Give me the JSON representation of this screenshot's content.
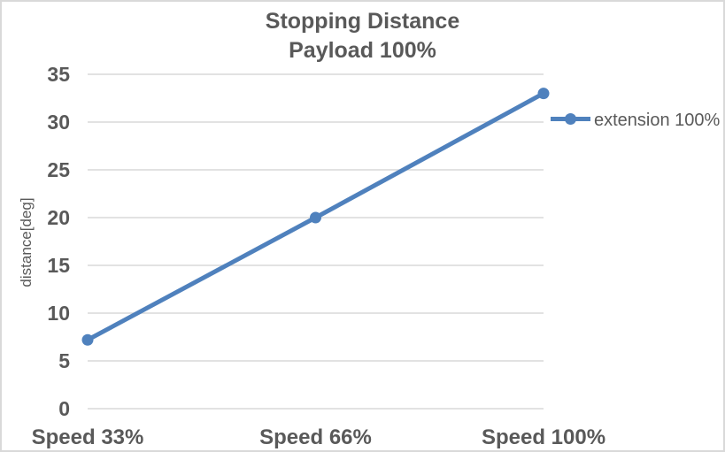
{
  "chart": {
    "title_line1": "Stopping Distance",
    "title_line2": "Payload 100%",
    "y_axis_title": "distance[deg]",
    "legend_label": "extension 100%"
  },
  "chart_data": {
    "type": "line",
    "title": "Stopping Distance Payload 100%",
    "categories": [
      "Speed 33%",
      "Speed 66%",
      "Speed 100%"
    ],
    "series": [
      {
        "name": "extension 100%",
        "values": [
          7.2,
          20,
          33
        ]
      }
    ],
    "xlabel": "",
    "ylabel": "distance[deg]",
    "ylim": [
      0,
      35
    ],
    "ytick_step": 5,
    "yticks": [
      0,
      5,
      10,
      15,
      20,
      25,
      30,
      35
    ],
    "grid": true,
    "marker": "circle",
    "legend_position": "right",
    "colors": {
      "series": "#4F81BD",
      "text": "#595959",
      "gridline": "#D9D9D9",
      "border": "#D9D9D9",
      "background": "#FFFFFF"
    }
  }
}
